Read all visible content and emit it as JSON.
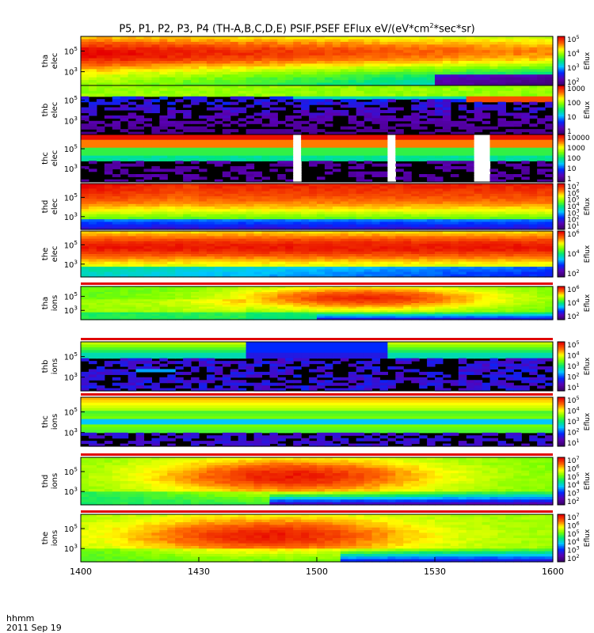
{
  "title_parts": {
    "main": "P5, P1, P2, P3, P4 (TH-A,B,C,D,E) PSIF,PSEF EFlux eV/(eV*cm",
    "sup": "2",
    "tail": "*sec*sr)"
  },
  "time_axis": {
    "label_line1": "hhmm",
    "label_line2": "2011 Sep 19",
    "ticks": [
      "1400",
      "1430",
      "1500",
      "1530",
      "1600"
    ]
  },
  "chart_data": {
    "type": "heatmap",
    "colorscale": "rainbow (purple-blue-cyan-green-yellow-red)",
    "x_range": [
      "1400",
      "1600"
    ],
    "panels": [
      {
        "probe": "tha",
        "species": "elec",
        "y_ticks": [
          "10^5",
          "10^3"
        ],
        "cbar_ticks": [
          "10^5",
          "10^4",
          "10^3",
          "10^2"
        ],
        "cbar_label": "Eflux"
      },
      {
        "probe": "thb",
        "species": "elec",
        "y_ticks": [
          "10^5",
          "10^3"
        ],
        "cbar_ticks": [
          "1000",
          "100",
          "10",
          "1"
        ],
        "cbar_label": "Eflux"
      },
      {
        "probe": "thc",
        "species": "elec",
        "y_ticks": [
          "10^5",
          "10^3"
        ],
        "cbar_ticks": [
          "10000",
          "1000",
          "100",
          "10",
          "1"
        ],
        "cbar_label": ""
      },
      {
        "probe": "thd",
        "species": "elec",
        "y_ticks": [
          "10^5",
          "10^3"
        ],
        "cbar_ticks": [
          "10^7",
          "10^6",
          "10^5",
          "10^4",
          "10^3",
          "10^2",
          "10^1"
        ],
        "cbar_label": "Eflux"
      },
      {
        "probe": "the",
        "species": "elec",
        "y_ticks": [
          "10^5",
          "10^3"
        ],
        "cbar_ticks": [
          "10^6",
          "10^4",
          "10^2"
        ],
        "cbar_label": "Eflux"
      },
      {
        "probe": "tha",
        "species": "ions",
        "y_ticks": [
          "10^5",
          "10^3"
        ],
        "cbar_ticks": [
          "10^6",
          "10^4",
          "10^2"
        ],
        "cbar_label": "Eflux"
      },
      {
        "probe": "thb",
        "species": "ions",
        "y_ticks": [
          "10^5",
          "10^3"
        ],
        "cbar_ticks": [
          "10^5",
          "10^4",
          "10^3",
          "10^2",
          "10^1"
        ],
        "cbar_label": "Eflux"
      },
      {
        "probe": "thc",
        "species": "ions",
        "y_ticks": [
          "10^5",
          "10^3"
        ],
        "cbar_ticks": [
          "10^5",
          "10^4",
          "10^3",
          "10^2",
          "10^1"
        ],
        "cbar_label": "Eflux"
      },
      {
        "probe": "thd",
        "species": "ions",
        "y_ticks": [
          "10^5",
          "10^3"
        ],
        "cbar_ticks": [
          "10^7",
          "10^6",
          "10^5",
          "10^4",
          "10^3",
          "10^2"
        ],
        "cbar_label": "Eflux"
      },
      {
        "probe": "the",
        "species": "ions",
        "y_ticks": [
          "10^5",
          "10^3"
        ],
        "cbar_ticks": [
          "10^7",
          "10^6",
          "10^5",
          "10^4",
          "10^3",
          "10^2"
        ],
        "cbar_label": "Eflux"
      }
    ]
  }
}
